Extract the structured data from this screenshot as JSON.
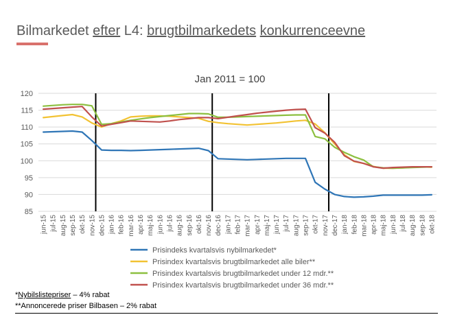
{
  "title": {
    "w1": "Bilmarkedet",
    "w2": "efter",
    "w3": "L4:",
    "w4": "brugtbilmarkedets",
    "w5": "konkurrenceevne"
  },
  "chart_data": {
    "type": "line",
    "title": "Jan 2011 = 100",
    "ylim": [
      85,
      120
    ],
    "yticks": [
      85,
      90,
      95,
      100,
      105,
      110,
      115,
      120
    ],
    "grid": true,
    "legend_position": "bottom",
    "categories": [
      "jun-15",
      "jul-15",
      "aug-15",
      "sep-15",
      "okt-15",
      "nov-15",
      "dec-15",
      "jan-16",
      "feb-16",
      "mar-16",
      "apr-16",
      "maj-16",
      "jun-16",
      "jul-16",
      "aug-16",
      "sep-16",
      "okt-16",
      "nov-16",
      "dec-16",
      "jan-17",
      "feb-17",
      "mar-17",
      "apr-17",
      "maj-17",
      "jun-17",
      "jul-17",
      "aug-17",
      "sep-17",
      "okt-17",
      "nov-17",
      "dec-17",
      "jan-18",
      "feb-18",
      "mar-18",
      "apr-18",
      "maj-18",
      "jun-18",
      "jul-18",
      "aug-18",
      "sep-18",
      "okt-18"
    ],
    "vertical_markers": [
      "nov-15",
      "nov-16",
      "nov-17"
    ],
    "series": [
      {
        "name": "Prisindeks kvartalsvis nybilmarkedet*",
        "color": "#2e75b6",
        "values": [
          108.5,
          108.6,
          108.7,
          108.8,
          108.5,
          106.0,
          103.2,
          103.1,
          103.1,
          103.0,
          103.1,
          103.2,
          103.3,
          103.4,
          103.5,
          103.6,
          103.7,
          103.0,
          100.6,
          100.5,
          100.4,
          100.3,
          100.4,
          100.5,
          100.6,
          100.7,
          100.7,
          100.7,
          93.6,
          91.6,
          90.0,
          89.4,
          89.2,
          89.3,
          89.5,
          89.8,
          89.8,
          89.8,
          89.8,
          89.8,
          89.9
        ]
      },
      {
        "name": "Prisindex kvartalsvis brugtbilmarkedet alle biler**",
        "color": "#f2c232",
        "values": [
          112.8,
          113.1,
          113.4,
          113.7,
          113.0,
          111.2,
          110.0,
          111.0,
          111.8,
          113.0,
          113.2,
          113.3,
          113.3,
          113.2,
          113.0,
          112.8,
          112.6,
          111.7,
          111.3,
          111.0,
          110.8,
          110.6,
          110.8,
          111.0,
          111.2,
          111.5,
          111.8,
          112.0,
          110.9,
          108.3,
          105.0,
          101.8,
          99.8,
          99.2,
          98.3,
          97.8,
          97.8,
          97.9,
          98.1,
          98.2,
          98.1
        ]
      },
      {
        "name": "Prisindex kvartalsvis brugtbilmarkedet under 12 mdr.**",
        "color": "#8cbf3f",
        "values": [
          116.2,
          116.4,
          116.6,
          116.7,
          116.7,
          116.3,
          110.8,
          111.0,
          111.5,
          112.0,
          112.4,
          112.8,
          113.1,
          113.4,
          113.7,
          114.0,
          114.0,
          113.9,
          112.9,
          112.9,
          113.0,
          113.1,
          113.2,
          113.3,
          113.4,
          113.5,
          113.6,
          113.6,
          107.2,
          106.5,
          104.0,
          102.5,
          101.2,
          100.2,
          98.2,
          97.9,
          97.8,
          97.9,
          98.0,
          98.1,
          98.2
        ]
      },
      {
        "name": "Prisindex kvartalsvis brugtbilmarkedet under 36 mdr.**",
        "color": "#c0504d",
        "values": [
          115.3,
          115.5,
          115.7,
          115.9,
          116.1,
          113.0,
          110.3,
          110.8,
          111.3,
          111.8,
          111.7,
          111.6,
          111.5,
          111.8,
          112.2,
          112.5,
          112.8,
          112.8,
          112.5,
          112.9,
          113.3,
          113.7,
          114.1,
          114.4,
          114.7,
          115.0,
          115.2,
          115.3,
          109.8,
          108.2,
          105.5,
          101.5,
          99.9,
          99.2,
          98.2,
          97.8,
          98.0,
          98.1,
          98.2,
          98.2,
          98.2
        ]
      }
    ]
  },
  "footnotes": {
    "n1_prefix": "*",
    "n1_word": "Nybilslistepriser",
    "n1_rest": " – 4% rabat",
    "n2": "**Annoncerede priser Bilbasen – 2% rabat"
  }
}
